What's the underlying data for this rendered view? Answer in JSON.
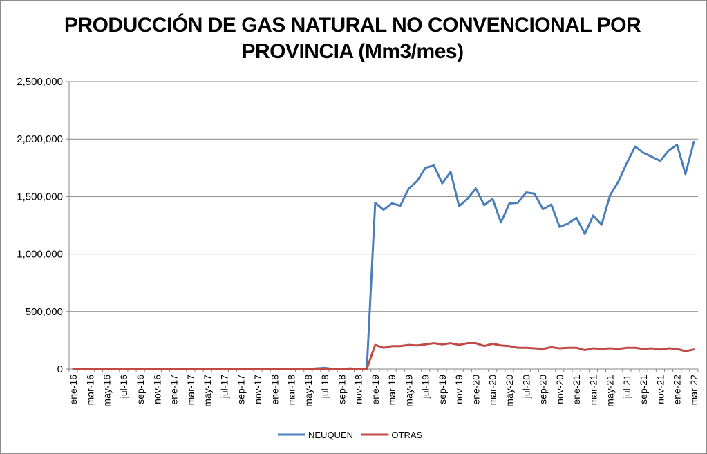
{
  "chart_data": {
    "type": "line",
    "title_line1": "PRODUCCIÓN DE GAS NATURAL NO CONVENCIONAL POR",
    "title_line2": "PROVINCIA (Mm3/mes)",
    "xlabel": "",
    "ylabel": "",
    "ylim": [
      0,
      2500000
    ],
    "y_ticks": [
      "0",
      "500,000",
      "1,000,000",
      "1,500,000",
      "2,000,000",
      "2,500,000"
    ],
    "y_tick_values": [
      0,
      500000,
      1000000,
      1500000,
      2000000,
      2500000
    ],
    "grid": true,
    "legend_position": "bottom",
    "x": [
      "ene-16",
      "feb-16",
      "mar-16",
      "abr-16",
      "may-16",
      "jun-16",
      "jul-16",
      "ago-16",
      "sep-16",
      "oct-16",
      "nov-16",
      "dic-16",
      "ene-17",
      "feb-17",
      "mar-17",
      "abr-17",
      "may-17",
      "jun-17",
      "jul-17",
      "ago-17",
      "sep-17",
      "oct-17",
      "nov-17",
      "dic-17",
      "ene-18",
      "feb-18",
      "mar-18",
      "abr-18",
      "may-18",
      "jun-18",
      "jul-18",
      "ago-18",
      "sep-18",
      "oct-18",
      "nov-18",
      "dic-18",
      "ene-19",
      "feb-19",
      "mar-19",
      "abr-19",
      "may-19",
      "jun-19",
      "jul-19",
      "ago-19",
      "sep-19",
      "oct-19",
      "nov-19",
      "dic-19",
      "ene-20",
      "feb-20",
      "mar-20",
      "abr-20",
      "may-20",
      "jun-20",
      "jul-20",
      "ago-20",
      "sep-20",
      "oct-20",
      "nov-20",
      "dic-20",
      "ene-21",
      "feb-21",
      "mar-21",
      "abr-21",
      "may-21",
      "jun-21",
      "jul-21",
      "ago-21",
      "sep-21",
      "oct-21",
      "nov-21",
      "dic-21",
      "ene-22",
      "feb-22",
      "mar-22"
    ],
    "x_tick_labels": [
      "ene-16",
      "mar-16",
      "may-16",
      "jul-16",
      "sep-16",
      "nov-16",
      "ene-17",
      "mar-17",
      "may-17",
      "jul-17",
      "sep-17",
      "nov-17",
      "ene-18",
      "mar-18",
      "may-18",
      "jul-18",
      "sep-18",
      "nov-18",
      "ene-19",
      "mar-19",
      "may-19",
      "jul-19",
      "sep-19",
      "nov-19",
      "ene-20",
      "mar-20",
      "may-20",
      "jul-20",
      "sep-20",
      "nov-20",
      "ene-21",
      "mar-21",
      "may-21",
      "jul-21",
      "sep-21",
      "nov-21",
      "ene-22",
      "mar-22"
    ],
    "series": [
      {
        "name": "NEUQUEN",
        "color": "#4a7ebb",
        "values": [
          0,
          0,
          0,
          0,
          0,
          0,
          0,
          0,
          0,
          0,
          0,
          0,
          0,
          0,
          0,
          0,
          0,
          0,
          0,
          0,
          0,
          0,
          0,
          0,
          0,
          0,
          0,
          0,
          0,
          5000,
          10000,
          0,
          0,
          5000,
          0,
          0,
          1445000,
          1385000,
          1440000,
          1420000,
          1570000,
          1635000,
          1750000,
          1770000,
          1615000,
          1715000,
          1415000,
          1480000,
          1570000,
          1425000,
          1480000,
          1275000,
          1440000,
          1445000,
          1535000,
          1525000,
          1390000,
          1430000,
          1235000,
          1265000,
          1315000,
          1175000,
          1335000,
          1255000,
          1510000,
          1630000,
          1790000,
          1935000,
          1880000,
          1845000,
          1810000,
          1900000,
          1950000,
          1695000,
          1975000
        ]
      },
      {
        "name": "OTRAS",
        "color": "#be4b48",
        "values": [
          0,
          0,
          0,
          0,
          0,
          0,
          0,
          0,
          0,
          0,
          0,
          0,
          0,
          0,
          0,
          0,
          0,
          0,
          0,
          0,
          0,
          0,
          0,
          0,
          0,
          0,
          0,
          0,
          0,
          0,
          2000,
          0,
          0,
          2000,
          0,
          0,
          210000,
          185000,
          200000,
          200000,
          210000,
          205000,
          215000,
          225000,
          215000,
          225000,
          210000,
          225000,
          225000,
          200000,
          220000,
          205000,
          200000,
          185000,
          185000,
          180000,
          175000,
          190000,
          180000,
          185000,
          185000,
          165000,
          180000,
          175000,
          180000,
          175000,
          185000,
          185000,
          175000,
          180000,
          170000,
          180000,
          175000,
          155000,
          170000
        ]
      }
    ]
  }
}
